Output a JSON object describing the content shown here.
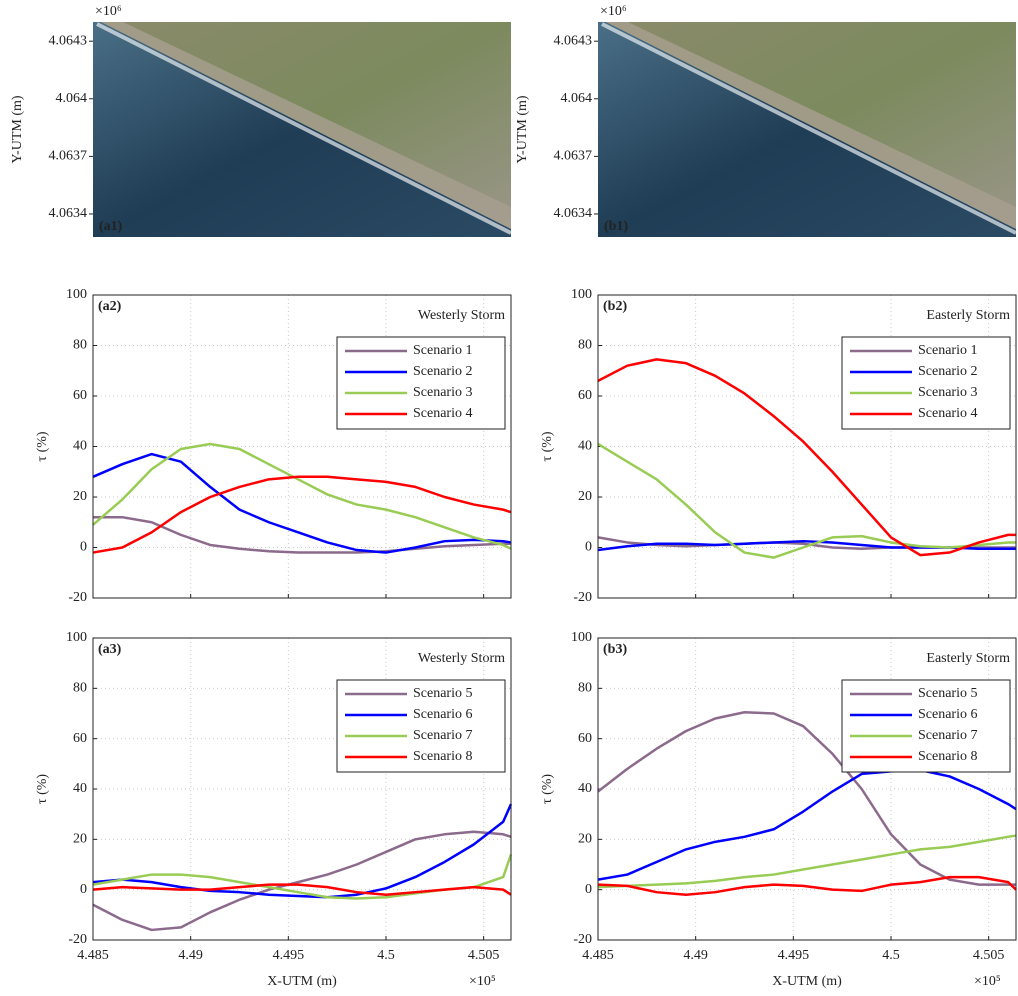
{
  "chart_data": [
    {
      "type": "image",
      "label": "(a1)",
      "ylabel": "Y-UTM (m)",
      "y_exponent": "×10⁶",
      "ylim": [
        4.06328,
        4.0644
      ],
      "yticks": [
        4.0634,
        4.0637,
        4.064,
        4.0643
      ]
    },
    {
      "type": "image",
      "label": "(b1)",
      "ylabel": "Y-UTM (m)",
      "y_exponent": "×10⁶",
      "ylim": [
        4.06328,
        4.0644
      ],
      "yticks": [
        4.0634,
        4.0637,
        4.064,
        4.0643
      ]
    },
    {
      "type": "line",
      "label": "(a2)",
      "title": "Westerly Storm",
      "ylabel": "τ (%)",
      "grid": true,
      "legend": "upper right",
      "xtick_labels": false,
      "xlim": [
        4.485,
        4.5064
      ],
      "xticks": [
        4.485,
        4.49,
        4.495,
        4.5,
        4.505
      ],
      "ylim": [
        -20,
        100
      ],
      "yticks": [
        -20,
        0,
        20,
        40,
        60,
        80,
        100
      ],
      "x": [
        4.485,
        4.4865,
        4.488,
        4.4895,
        4.491,
        4.4925,
        4.494,
        4.4955,
        4.497,
        4.4985,
        4.5,
        4.5015,
        4.503,
        4.5045,
        4.506,
        4.5064
      ],
      "series": [
        {
          "name": "Scenario 1",
          "color": "#8c6a8c",
          "values": [
            12,
            12,
            10,
            5,
            1,
            -0.5,
            -1.5,
            -2,
            -2,
            -2,
            -1.5,
            -0.5,
            0.5,
            1,
            1.5,
            1.5
          ]
        },
        {
          "name": "Scenario 2",
          "color": "#0000ff",
          "values": [
            28,
            33,
            37,
            34,
            24,
            15,
            10,
            6,
            2,
            -1,
            -2,
            0,
            2.5,
            3,
            2.5,
            2
          ]
        },
        {
          "name": "Scenario 3",
          "color": "#99cc55",
          "values": [
            9,
            19,
            31,
            39,
            41,
            39,
            33,
            27,
            21,
            17,
            15,
            12,
            8,
            4,
            1,
            -0.5
          ]
        },
        {
          "name": "Scenario 4",
          "color": "#ff0000",
          "values": [
            -2,
            0,
            6,
            14,
            20,
            24,
            27,
            28,
            28,
            27,
            26,
            24,
            20,
            17,
            15,
            14
          ]
        }
      ]
    },
    {
      "type": "line",
      "label": "(b2)",
      "title": "Easterly Storm",
      "ylabel": "τ (%)",
      "grid": true,
      "legend": "upper right",
      "xtick_labels": false,
      "xlim": [
        4.485,
        4.5064
      ],
      "xticks": [
        4.485,
        4.49,
        4.495,
        4.5,
        4.505
      ],
      "ylim": [
        -20,
        100
      ],
      "yticks": [
        -20,
        0,
        20,
        40,
        60,
        80,
        100
      ],
      "x": [
        4.485,
        4.4865,
        4.488,
        4.4895,
        4.491,
        4.4925,
        4.494,
        4.4955,
        4.497,
        4.4985,
        4.5,
        4.5015,
        4.503,
        4.5045,
        4.506,
        4.5064
      ],
      "series": [
        {
          "name": "Scenario 1",
          "color": "#8c6a8c",
          "values": [
            4,
            2,
            1,
            0.5,
            1,
            1.5,
            2,
            1.5,
            0,
            -0.5,
            0,
            0,
            0,
            0,
            0,
            0
          ]
        },
        {
          "name": "Scenario 2",
          "color": "#0000ff",
          "values": [
            -1,
            0.5,
            1.5,
            1.5,
            1,
            1.5,
            2,
            2.5,
            2,
            1,
            0,
            0,
            0,
            -0.5,
            -0.5,
            -0.5
          ]
        },
        {
          "name": "Scenario 3",
          "color": "#99cc55",
          "values": [
            41,
            34,
            27,
            17,
            6,
            -2,
            -4,
            0,
            4,
            4.5,
            2,
            0.5,
            0,
            1,
            2,
            2
          ]
        },
        {
          "name": "Scenario 4",
          "color": "#ff0000",
          "values": [
            66,
            72,
            74.5,
            73,
            68,
            61,
            52,
            42,
            30,
            17,
            4,
            -3,
            -2,
            2,
            5,
            5
          ]
        }
      ]
    },
    {
      "type": "line",
      "label": "(a3)",
      "title": "Westerly Storm",
      "ylabel": "τ (%)",
      "xlabel": "X-UTM (m)",
      "x_exponent": "×10⁵",
      "grid": true,
      "legend": "upper right",
      "xtick_labels": true,
      "xlim": [
        4.485,
        4.5064
      ],
      "xticks": [
        4.485,
        4.49,
        4.495,
        4.5,
        4.505
      ],
      "ylim": [
        -20,
        100
      ],
      "yticks": [
        -20,
        0,
        20,
        40,
        60,
        80,
        100
      ],
      "x": [
        4.485,
        4.4865,
        4.488,
        4.4895,
        4.491,
        4.4925,
        4.494,
        4.4955,
        4.497,
        4.4985,
        4.5,
        4.5015,
        4.503,
        4.5045,
        4.506,
        4.5064
      ],
      "series": [
        {
          "name": "Scenario 5",
          "color": "#8c6a8c",
          "values": [
            -6,
            -12,
            -16,
            -15,
            -9,
            -4,
            0,
            3,
            6,
            10,
            15,
            20,
            22,
            23,
            22,
            21
          ]
        },
        {
          "name": "Scenario 6",
          "color": "#0000ff",
          "values": [
            3,
            4,
            3,
            1,
            -0.5,
            -1,
            -2,
            -2.5,
            -3,
            -2,
            0.5,
            5,
            11,
            18,
            27,
            34
          ]
        },
        {
          "name": "Scenario 7",
          "color": "#99cc55",
          "values": [
            2,
            4,
            6,
            6,
            5,
            3,
            1,
            -1,
            -3,
            -3.5,
            -3,
            -1.5,
            0,
            1,
            5,
            14
          ]
        },
        {
          "name": "Scenario 8",
          "color": "#ff0000",
          "values": [
            0,
            1,
            0.5,
            0,
            0,
            1,
            2,
            2,
            1,
            -1,
            -2,
            -1,
            0,
            1,
            0,
            -2
          ]
        }
      ]
    },
    {
      "type": "line",
      "label": "(b3)",
      "title": "Easterly Storm",
      "ylabel": "τ (%)",
      "xlabel": "X-UTM (m)",
      "x_exponent": "×10⁵",
      "grid": true,
      "legend": "upper right",
      "xtick_labels": true,
      "xlim": [
        4.485,
        4.5064
      ],
      "xticks": [
        4.485,
        4.49,
        4.495,
        4.5,
        4.505
      ],
      "ylim": [
        -20,
        100
      ],
      "yticks": [
        -20,
        0,
        20,
        40,
        60,
        80,
        100
      ],
      "x": [
        4.485,
        4.4865,
        4.488,
        4.4895,
        4.491,
        4.4925,
        4.494,
        4.4955,
        4.497,
        4.4985,
        4.5,
        4.5015,
        4.503,
        4.5045,
        4.506,
        4.5064
      ],
      "series": [
        {
          "name": "Scenario 5",
          "color": "#8c6a8c",
          "values": [
            39,
            48,
            56,
            63,
            68,
            70.5,
            70,
            65,
            54,
            40,
            22,
            10,
            4,
            2,
            2,
            2
          ]
        },
        {
          "name": "Scenario 6",
          "color": "#0000ff",
          "values": [
            4,
            6,
            11,
            16,
            19,
            21,
            24,
            31,
            39,
            46,
            47,
            47.5,
            45,
            40,
            34,
            32
          ]
        },
        {
          "name": "Scenario 7",
          "color": "#99cc55",
          "values": [
            1,
            1.5,
            2,
            2.5,
            3.5,
            5,
            6,
            8,
            10,
            12,
            14,
            16,
            17,
            19,
            21,
            21.5
          ]
        },
        {
          "name": "Scenario 8",
          "color": "#ff0000",
          "values": [
            2,
            1.5,
            -1,
            -2,
            -1,
            1,
            2,
            1.5,
            0,
            -0.5,
            2,
            3,
            5,
            5,
            3,
            0
          ]
        }
      ]
    }
  ]
}
